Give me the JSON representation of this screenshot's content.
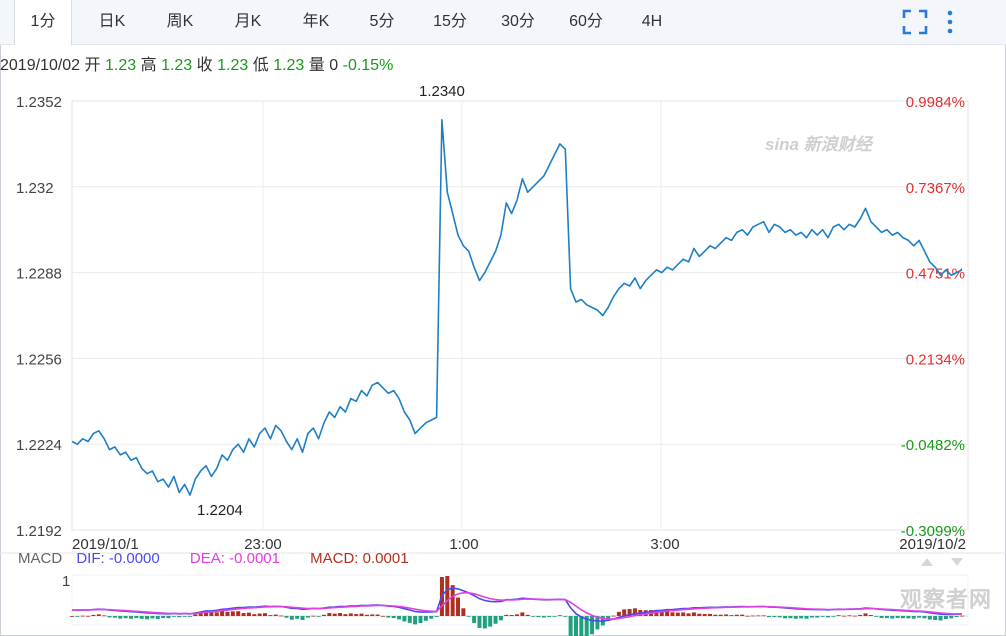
{
  "tabs": [
    {
      "label": "1分",
      "active": true
    },
    {
      "label": "日K"
    },
    {
      "label": "周K"
    },
    {
      "label": "月K"
    },
    {
      "label": "年K"
    },
    {
      "label": "5分"
    },
    {
      "label": "15分"
    },
    {
      "label": "30分"
    },
    {
      "label": "60分"
    },
    {
      "label": "4H"
    }
  ],
  "toolbar": {
    "fullscreen_icon": "fullscreen-icon",
    "menu_icon": "more-vertical-icon",
    "icon_color": "#2b7bd6"
  },
  "quote": {
    "date": "2019/10/02",
    "open_label": "开",
    "open": "1.23",
    "high_label": "高",
    "high": "1.23",
    "close_label": "收",
    "close": "1.23",
    "low_label": "低",
    "low": "1.23",
    "volume_label": "量",
    "volume": "0",
    "change": "-0.15%"
  },
  "macd": {
    "label": "MACD",
    "dif_label": "DIF:",
    "dif": "-0.0000",
    "dea_label": "DEA:",
    "dea": "-0.0001",
    "macd_label": "MACD:",
    "macd": "0.0001",
    "axis_label": "1",
    "colors": {
      "dif": "#4a4af0",
      "dea": "#e040e0",
      "macd": "#b03020",
      "up": "#b03020",
      "down": "#20a080"
    }
  },
  "watermarks": {
    "sina": "sina 新浪财经",
    "guancha": "观察者网"
  },
  "chart_data": {
    "type": "line",
    "y_ticks": [
      "1.2352",
      "1.232",
      "1.2288",
      "1.2256",
      "1.2224",
      "1.2192"
    ],
    "ylim": [
      1.2192,
      1.2352
    ],
    "pct_ticks": [
      {
        "label": "0.9984%",
        "color": "#e03030"
      },
      {
        "label": "0.7367%",
        "color": "#e03030"
      },
      {
        "label": "0.4751%",
        "color": "#e03030"
      },
      {
        "label": "0.2134%",
        "color": "#e03030"
      },
      {
        "label": "-0.0482%",
        "color": "#1a9a1a"
      },
      {
        "label": "-0.3099%",
        "color": "#1a9a1a"
      }
    ],
    "x_ticks": [
      "2019/10/1",
      "23:00",
      "1:00",
      "3:00",
      "2019/10/2"
    ],
    "annotations": [
      {
        "text": "1.2340"
      },
      {
        "text": "1.2204"
      }
    ],
    "line_color": "#1f7fc4",
    "grid": true,
    "series": [
      {
        "values": [
          1.2225,
          1.2224,
          1.2226,
          1.2225,
          1.2228,
          1.2229,
          1.2226,
          1.2222,
          1.2223,
          1.222,
          1.2221,
          1.2218,
          1.2219,
          1.2215,
          1.2213,
          1.2214,
          1.221,
          1.2211,
          1.2208,
          1.2212,
          1.2206,
          1.2209,
          1.2205,
          1.2211,
          1.2214,
          1.2216,
          1.2212,
          1.2215,
          1.222,
          1.2218,
          1.2222,
          1.2224,
          1.2221,
          1.2226,
          1.2223,
          1.2228,
          1.223,
          1.2226,
          1.2231,
          1.2229,
          1.2225,
          1.2222,
          1.2226,
          1.2221,
          1.2228,
          1.223,
          1.2226,
          1.2232,
          1.2236,
          1.2234,
          1.2238,
          1.2236,
          1.2241,
          1.224,
          1.2244,
          1.2242,
          1.2246,
          1.2247,
          1.2245,
          1.2243,
          1.2244,
          1.2241,
          1.2236,
          1.2233,
          1.2228,
          1.223,
          1.2232,
          1.2233,
          1.2234,
          1.2345,
          1.2318,
          1.231,
          1.2302,
          1.2298,
          1.2296,
          1.229,
          1.2285,
          1.2288,
          1.2292,
          1.2296,
          1.2302,
          1.2314,
          1.231,
          1.2315,
          1.2323,
          1.2318,
          1.232,
          1.2322,
          1.2324,
          1.2328,
          1.2332,
          1.2336,
          1.2334,
          1.2282,
          1.2277,
          1.2278,
          1.2276,
          1.2275,
          1.2274,
          1.2272,
          1.2275,
          1.2279,
          1.2282,
          1.2284,
          1.2283,
          1.2286,
          1.2282,
          1.2285,
          1.2287,
          1.2289,
          1.2288,
          1.229,
          1.2289,
          1.2291,
          1.2293,
          1.2292,
          1.2297,
          1.2294,
          1.2296,
          1.2298,
          1.2297,
          1.2299,
          1.2301,
          1.23,
          1.2303,
          1.2304,
          1.2302,
          1.2305,
          1.2306,
          1.2307,
          1.2303,
          1.2306,
          1.2305,
          1.2303,
          1.2304,
          1.2302,
          1.2303,
          1.2301,
          1.2304,
          1.2302,
          1.2304,
          1.2301,
          1.2305,
          1.2306,
          1.2304,
          1.2306,
          1.2305,
          1.2308,
          1.2312,
          1.2307,
          1.2305,
          1.2303,
          1.2304,
          1.2302,
          1.2303,
          1.2301,
          1.23,
          1.2298,
          1.23,
          1.2296,
          1.2292,
          1.229,
          1.2287,
          1.2289,
          1.2287,
          1.2288,
          1.2289
        ]
      }
    ]
  }
}
